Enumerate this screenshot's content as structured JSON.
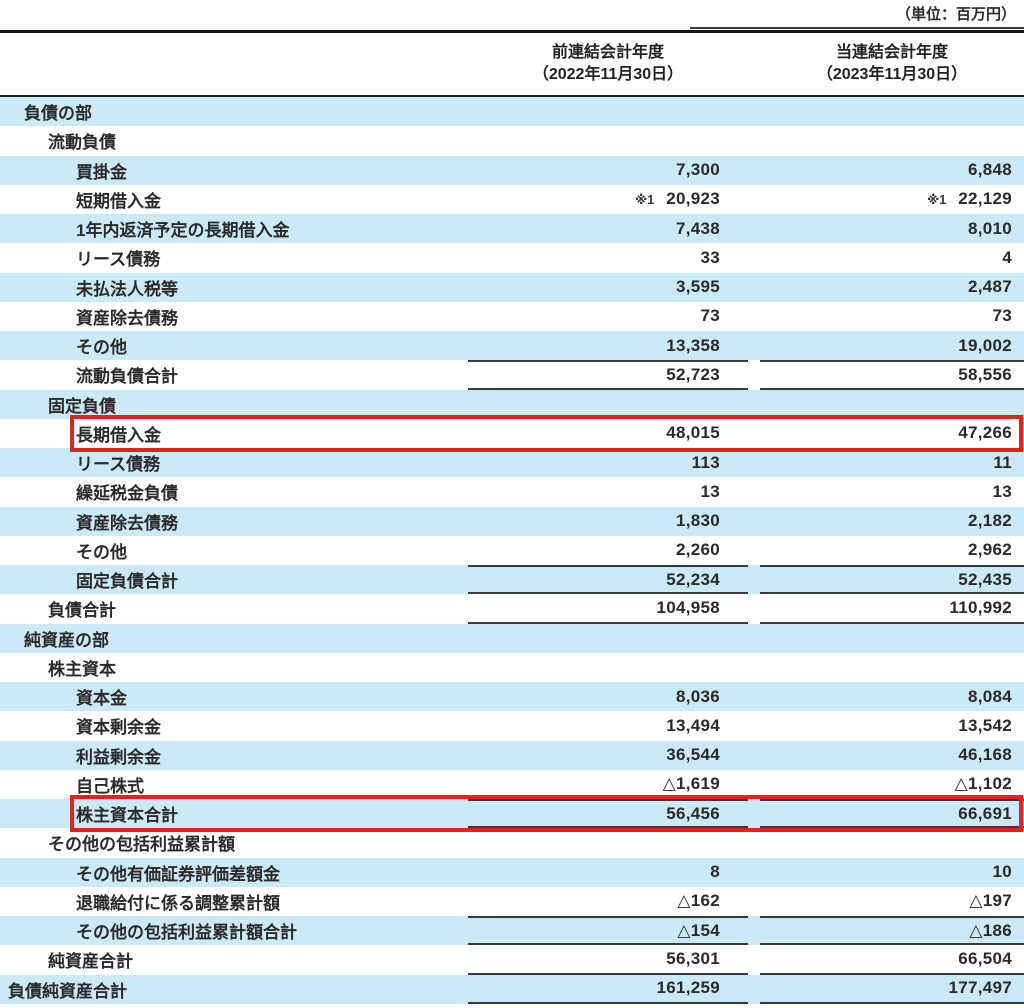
{
  "unit_label": "（単位：百万円）",
  "columns": [
    {
      "line1": "前連結会計年度",
      "line2": "（2022年11月30日）"
    },
    {
      "line1": "当連結会計年度",
      "line2": "（2023年11月30日）"
    }
  ],
  "rows": [
    {
      "label": "負債の部",
      "indent": 1,
      "v1": "",
      "v2": ""
    },
    {
      "label": "流動負債",
      "indent": 2,
      "v1": "",
      "v2": ""
    },
    {
      "label": "買掛金",
      "indent": 3,
      "v1": "7,300",
      "v2": "6,848"
    },
    {
      "label": "短期借入金",
      "indent": 3,
      "note1": "※1",
      "v1": "20,923",
      "note2": "※1",
      "v2": "22,129"
    },
    {
      "label": "1年内返済予定の長期借入金",
      "indent": 3,
      "v1": "7,438",
      "v2": "8,010"
    },
    {
      "label": "リース債務",
      "indent": 3,
      "v1": "33",
      "v2": "4"
    },
    {
      "label": "未払法人税等",
      "indent": 3,
      "v1": "3,595",
      "v2": "2,487"
    },
    {
      "label": "資産除去債務",
      "indent": 3,
      "v1": "73",
      "v2": "73"
    },
    {
      "label": "その他",
      "indent": 3,
      "v1": "13,358",
      "v2": "19,002"
    },
    {
      "label": "流動負債合計",
      "indent": 3,
      "v1": "52,723",
      "v2": "58,556",
      "rule": "both"
    },
    {
      "label": "固定負債",
      "indent": 2,
      "v1": "",
      "v2": ""
    },
    {
      "label": "長期借入金",
      "indent": 3,
      "v1": "48,015",
      "v2": "47,266",
      "highlight": true
    },
    {
      "label": "リース債務",
      "indent": 3,
      "v1": "113",
      "v2": "11"
    },
    {
      "label": "繰延税金負債",
      "indent": 3,
      "v1": "13",
      "v2": "13"
    },
    {
      "label": "資産除去債務",
      "indent": 3,
      "v1": "1,830",
      "v2": "2,182"
    },
    {
      "label": "その他",
      "indent": 3,
      "v1": "2,260",
      "v2": "2,962"
    },
    {
      "label": "固定負債合計",
      "indent": 3,
      "v1": "52,234",
      "v2": "52,435",
      "rule": "both"
    },
    {
      "label": "負債合計",
      "indent": 2,
      "v1": "104,958",
      "v2": "110,992",
      "rule": "bottom"
    },
    {
      "label": "純資産の部",
      "indent": 1,
      "v1": "",
      "v2": ""
    },
    {
      "label": "株主資本",
      "indent": 2,
      "v1": "",
      "v2": ""
    },
    {
      "label": "資本金",
      "indent": 3,
      "v1": "8,036",
      "v2": "8,084"
    },
    {
      "label": "資本剰余金",
      "indent": 3,
      "v1": "13,494",
      "v2": "13,542"
    },
    {
      "label": "利益剰余金",
      "indent": 3,
      "v1": "36,544",
      "v2": "46,168"
    },
    {
      "label": "自己株式",
      "indent": 3,
      "v1": "△1,619",
      "v2": "△1,102"
    },
    {
      "label": "株主資本合計",
      "indent": 3,
      "v1": "56,456",
      "v2": "66,691",
      "rule": "both",
      "highlight": true
    },
    {
      "label": "その他の包括利益累計額",
      "indent": 2,
      "v1": "",
      "v2": ""
    },
    {
      "label": "その他有価証券評価差額金",
      "indent": 3,
      "v1": "8",
      "v2": "10"
    },
    {
      "label": "退職給付に係る調整累計額",
      "indent": 3,
      "v1": "△162",
      "v2": "△197"
    },
    {
      "label": "その他の包括利益累計額合計",
      "indent": 3,
      "v1": "△154",
      "v2": "△186",
      "rule": "both"
    },
    {
      "label": "純資産合計",
      "indent": 2,
      "v1": "56,301",
      "v2": "66,504",
      "rule": "bottom"
    },
    {
      "label": "負債純資産合計",
      "indent": 0,
      "v1": "161,259",
      "v2": "177,497",
      "rule": "bottom"
    }
  ],
  "colors": {
    "row_stripe_blue": "#cce9f8",
    "highlight_red": "#e2231c",
    "rule_line": "#3a3a3a"
  }
}
